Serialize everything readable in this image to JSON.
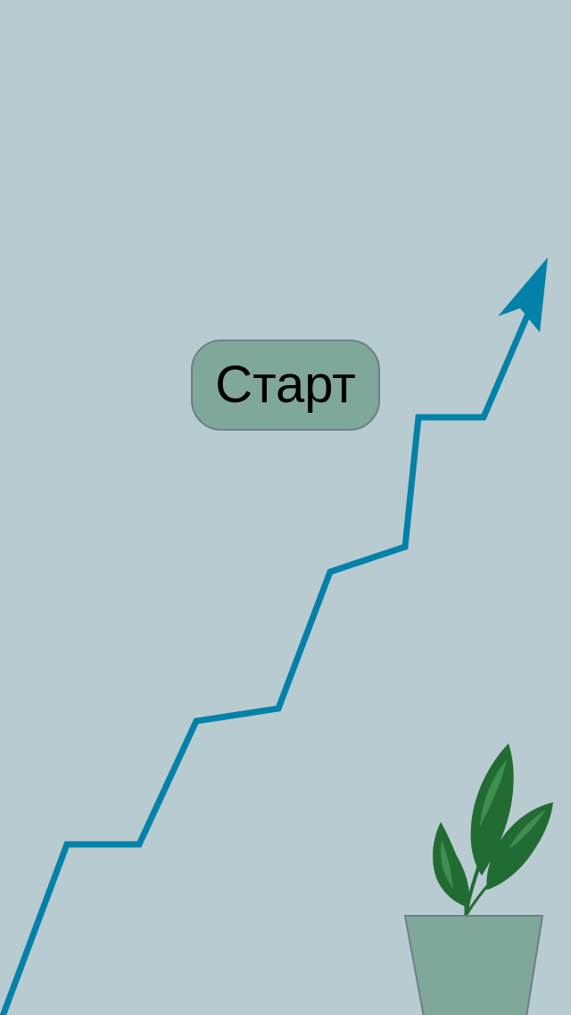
{
  "start_button": {
    "label": "Старт"
  },
  "colors": {
    "background": "#b8cbd0",
    "growth_line": "#0282a8",
    "button_fill": "#7fa79a",
    "button_border": "#6c7f86",
    "pot": "#7fa79a",
    "leaf_dark": "#226b32",
    "leaf_light": "#3f8f50"
  },
  "icons": {
    "growth_graph": "growth-arrow-icon",
    "plant": "potted-plant-icon"
  }
}
